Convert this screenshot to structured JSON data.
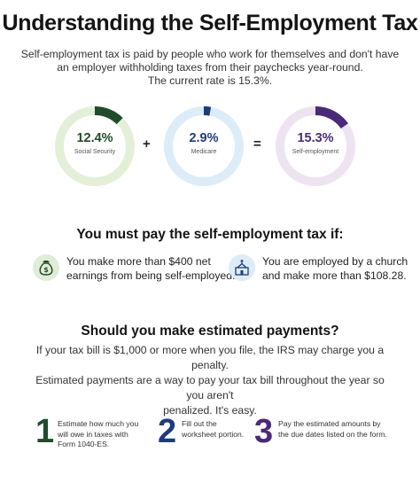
{
  "title": "Understanding the Self-Employment Tax",
  "intro_lines": [
    "Self-employment tax is paid by people who work for themselves and don't have",
    "an employer withholding taxes from their paychecks year-round.",
    "The current rate is 15.3%."
  ],
  "rates": [
    {
      "value": "12.4%",
      "label": "Social Security",
      "fraction": 0.124,
      "color": "#1e4d2b",
      "track": "#e4efd8"
    },
    {
      "value": "2.9%",
      "label": "Medicare",
      "fraction": 0.029,
      "color": "#1d3c7e",
      "track": "#dcecf8"
    },
    {
      "value": "15.3%",
      "label": "Self-employment",
      "fraction": 0.153,
      "color": "#4a2a78",
      "track": "#eee4f1"
    }
  ],
  "operators": {
    "plus": "+",
    "equals": "="
  },
  "must_pay": {
    "heading": "You must pay the self-employment tax if:",
    "conditions": [
      {
        "lines": [
          "You make more than $400 net",
          "earnings from being self-employed."
        ],
        "icon": "money-bag-icon"
      },
      {
        "lines": [
          "You are employed by a church",
          "and make more than $108.28."
        ],
        "icon": "church-icon"
      }
    ]
  },
  "estimated": {
    "heading": "Should you make estimated payments?",
    "lines": [
      "If your tax bill is $1,000 or more when you file, the IRS may charge you a penalty.",
      "Estimated payments are a way to pay your tax bill throughout the year so you aren't",
      "penalized. It's easy."
    ]
  },
  "steps": [
    {
      "number": "1",
      "lines": [
        "Estimate how much you",
        "will owe in taxes with",
        "Form 1040-ES."
      ],
      "color": "#1e4d2b"
    },
    {
      "number": "2",
      "lines": [
        "Fill out the",
        "worksheet portion."
      ],
      "color": "#1d3c7e"
    },
    {
      "number": "3",
      "lines": [
        "Pay the estimated amounts by",
        "the due dates listed on the form."
      ],
      "color": "#4a2a78"
    }
  ]
}
